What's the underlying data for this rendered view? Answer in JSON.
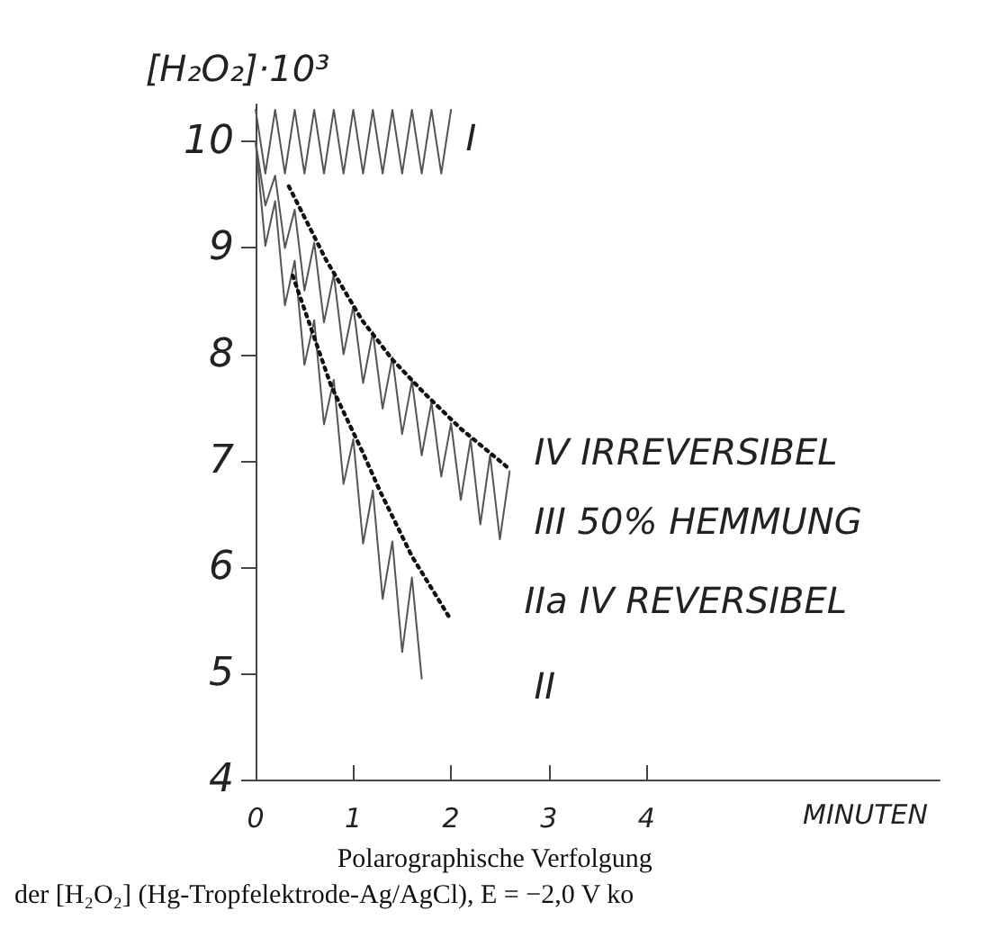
{
  "chart_data": {
    "type": "line",
    "ylabel": "[H₂O₂]·10³",
    "xlabel": "MINUTEN",
    "annotations": [
      "Polarographische Verfolgung",
      "der [H₂O₂] (Hg-Tropfelektrode-Ag/AgCl), E = −2,0 V ko"
    ],
    "xlim": [
      0,
      7
    ],
    "xticks": [
      0,
      1,
      2,
      3,
      4
    ],
    "ylim": [
      4,
      10.35
    ],
    "yticks": [
      4,
      5,
      6,
      7,
      8,
      9,
      10
    ],
    "grid": false,
    "legend": false,
    "marker": "none",
    "series": [
      {
        "name": "I",
        "color": "#555555",
        "line_style": "solid",
        "x": [
          0,
          0.1,
          0.2,
          0.3,
          0.4,
          0.5,
          0.6,
          0.7,
          0.8,
          0.9,
          1.0,
          1.1,
          1.2,
          1.3,
          1.4,
          1.5,
          1.6,
          1.7,
          1.8,
          1.9,
          2.0
        ],
        "values": [
          10.3,
          9.7,
          10.3,
          9.7,
          10.3,
          9.7,
          10.3,
          9.7,
          10.3,
          9.7,
          10.3,
          9.7,
          10.3,
          9.7,
          10.3,
          9.7,
          10.3,
          9.7,
          10.3,
          9.7,
          10.3
        ]
      },
      {
        "name": "IV IRREVERSIBEL",
        "color": "#111111",
        "line_style": "dotted",
        "x": [
          0.34,
          0.72,
          1.09,
          1.4,
          1.72,
          2.1,
          2.6
        ],
        "values": [
          9.58,
          8.89,
          8.32,
          7.95,
          7.64,
          7.3,
          6.92
        ]
      },
      {
        "name": "III 50% HEMMUNG",
        "color": "#555555",
        "line_style": "solid",
        "x": [
          0,
          0.1,
          0.2,
          0.3,
          0.4,
          0.5,
          0.6,
          0.7,
          0.8,
          0.9,
          1.0,
          1.1,
          1.2,
          1.3,
          1.4,
          1.5,
          1.6,
          1.7,
          1.8,
          1.9,
          2.0,
          2.1,
          2.2,
          2.3,
          2.4,
          2.5,
          2.6
        ],
        "values": [
          10,
          9.4,
          9.68,
          9.0,
          9.36,
          8.6,
          9.05,
          8.3,
          8.75,
          8.0,
          8.45,
          7.73,
          8.21,
          7.49,
          7.97,
          7.25,
          7.75,
          7.05,
          7.55,
          6.85,
          7.35,
          6.63,
          7.2,
          6.4,
          7.05,
          6.26,
          6.9
        ]
      },
      {
        "name": "IIa IV REVERSIBEL",
        "color": "#111111",
        "line_style": "dotted",
        "x": [
          0.38,
          0.77,
          1.09,
          1.28,
          1.6,
          1.98
        ],
        "values": [
          8.74,
          7.71,
          7.09,
          6.7,
          6.1,
          5.53
        ]
      },
      {
        "name": "II",
        "color": "#555555",
        "line_style": "solid",
        "x": [
          0,
          0.1,
          0.2,
          0.3,
          0.4,
          0.5,
          0.6,
          0.7,
          0.8,
          0.9,
          1.0,
          1.1,
          1.2,
          1.3,
          1.4,
          1.5,
          1.6,
          1.7
        ],
        "values": [
          10,
          9.02,
          9.44,
          8.46,
          8.88,
          7.9,
          8.32,
          7.34,
          7.76,
          6.78,
          7.2,
          6.22,
          6.72,
          5.7,
          6.24,
          5.2,
          5.9,
          4.95
        ]
      }
    ]
  }
}
